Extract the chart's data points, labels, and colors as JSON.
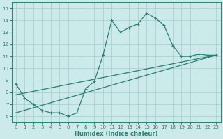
{
  "line1_x": [
    0,
    1,
    2,
    3,
    4,
    5,
    6,
    7,
    8,
    9,
    10,
    11,
    12,
    13,
    14,
    15,
    16,
    17,
    18,
    19,
    20,
    21,
    22,
    23
  ],
  "line1_y": [
    8.7,
    7.5,
    7.0,
    6.5,
    6.3,
    6.3,
    6.0,
    6.3,
    8.3,
    8.9,
    11.1,
    14.0,
    13.0,
    13.4,
    13.7,
    14.6,
    14.2,
    13.6,
    11.9,
    11.0,
    11.0,
    11.2,
    11.1,
    11.1
  ],
  "line2_x": [
    0,
    23
  ],
  "line2_y": [
    6.3,
    11.1
  ],
  "line3_x": [
    0,
    23
  ],
  "line3_y": [
    7.8,
    11.1
  ],
  "color": "#2d7d6e",
  "bg_color": "#cceaea",
  "grid_color": "#aad0d0",
  "xlabel": "Humidex (Indice chaleur)",
  "xlim": [
    -0.5,
    23.5
  ],
  "ylim": [
    5.5,
    15.5
  ],
  "yticks": [
    6,
    7,
    8,
    9,
    10,
    11,
    12,
    13,
    14,
    15
  ],
  "xticks": [
    0,
    1,
    2,
    3,
    4,
    5,
    6,
    7,
    8,
    9,
    10,
    11,
    12,
    13,
    14,
    15,
    16,
    17,
    18,
    19,
    20,
    21,
    22,
    23
  ],
  "marker": "+",
  "markersize": 3.0,
  "linewidth": 0.9
}
